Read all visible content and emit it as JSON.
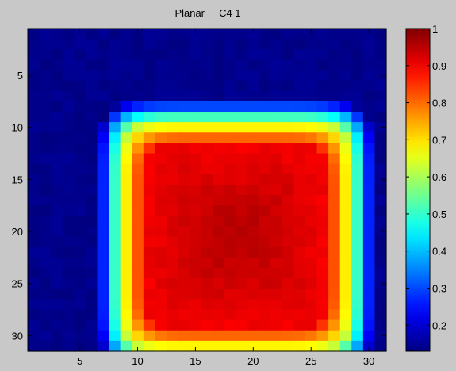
{
  "chart_data": {
    "type": "heatmap",
    "title": "Planar     C4 1",
    "xlabel": "",
    "ylabel": "",
    "rows": 31,
    "cols": 31,
    "x_ticks": [
      5,
      10,
      15,
      20,
      25,
      30
    ],
    "y_ticks": [
      5,
      10,
      15,
      20,
      25,
      30
    ],
    "y_direction": "top-to-bottom",
    "colormap": "jet",
    "clim": [
      0.13,
      1
    ],
    "colorbar_ticks": [
      0.2,
      0.3,
      0.4,
      0.5,
      0.6,
      0.7,
      0.8,
      0.9,
      1
    ],
    "background_value": 0.15,
    "plateau": {
      "rows": [
        10,
        31
      ],
      "cols": [
        9,
        28
      ],
      "peak_value": 0.97,
      "edge_value": 0.62,
      "min_value": 0.15
    }
  }
}
